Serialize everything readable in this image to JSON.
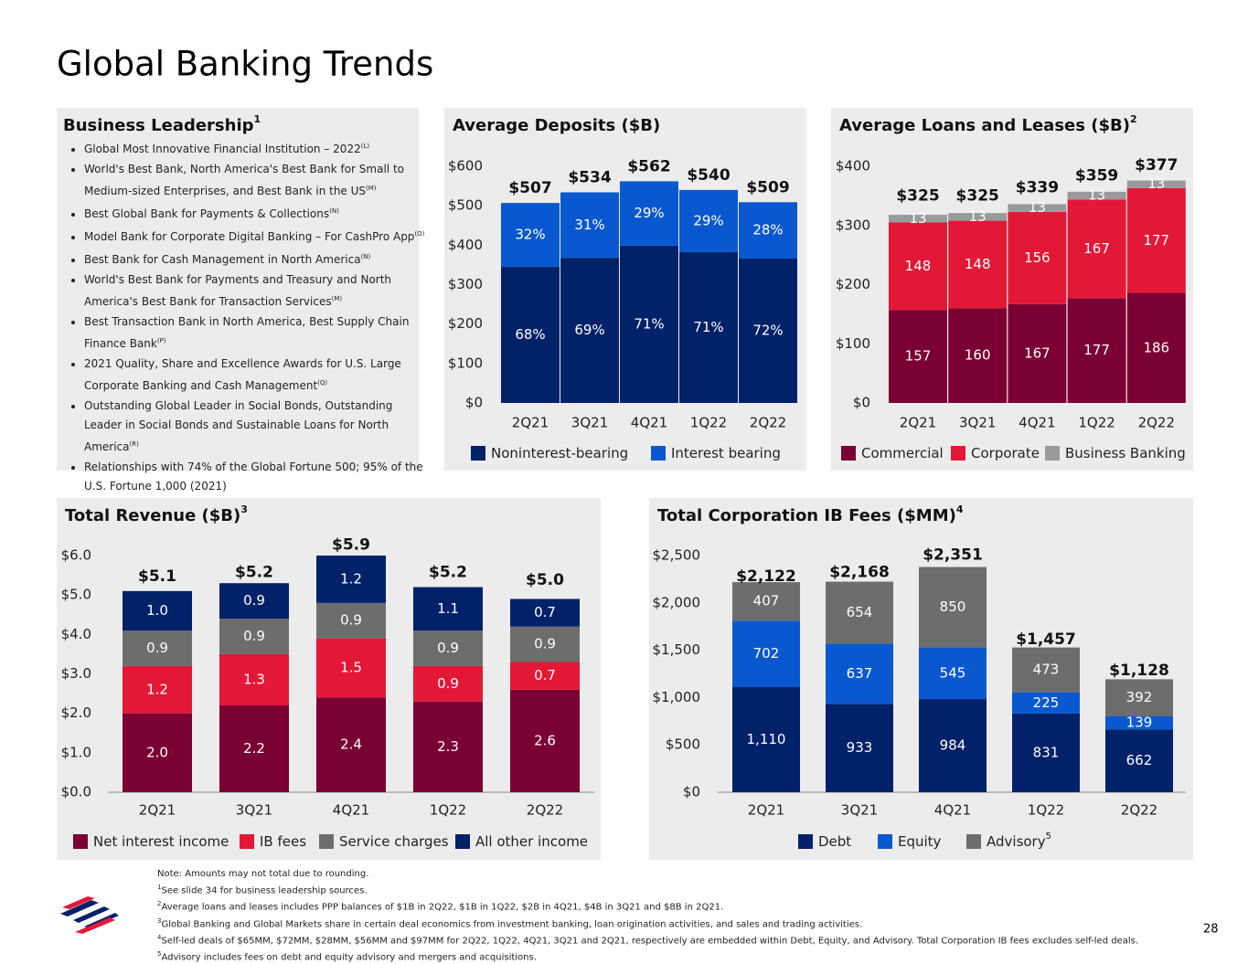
{
  "title": "Global Banking Trends",
  "leadership": {
    "title": "Business Leadership",
    "title_sup": "1",
    "items": [
      {
        "text": "Global Most Innovative Financial Institution – 2022",
        "sup": "(L)"
      },
      {
        "text": "World's Best Bank, North America's Best Bank for Small to Medium-sized Enterprises, and Best Bank in the US",
        "sup": "(M)"
      },
      {
        "text": "Best Global Bank for Payments & Collections",
        "sup": "(N)"
      },
      {
        "text": "Model Bank for Corporate Digital Banking – For CashPro App",
        "sup": "(O)"
      },
      {
        "text": "Best Bank for Cash Management in North America",
        "sup": "(N)"
      },
      {
        "text": "World's Best Bank for Payments and Treasury and North America's Best Bank for Transaction Services",
        "sup": "(M)"
      },
      {
        "text": "Best Transaction Bank in North America, Best Supply Chain Finance Bank",
        "sup": "(P)"
      },
      {
        "text": "2021 Quality, Share and Excellence Awards for U.S. Large Corporate Banking and Cash Management",
        "sup": "(Q)"
      },
      {
        "text": "Outstanding Global Leader in Social Bonds, Outstanding Leader in Social Bonds and Sustainable Loans for North America",
        "sup": "(R)"
      },
      {
        "text": "Relationships with 74% of the Global Fortune 500; 95% of the U.S. Fortune 1,000 (2021)"
      }
    ]
  },
  "chart_data": [
    {
      "type": "bar",
      "title": "Average Deposits ($B)",
      "categories": [
        "2Q21",
        "3Q21",
        "4Q21",
        "1Q22",
        "2Q22"
      ],
      "series": [
        {
          "name": "Noninterest-bearing",
          "color": "#012169",
          "values": [
            345,
            368,
            399,
            383,
            366
          ],
          "share_labels": [
            "68%",
            "69%",
            "71%",
            "71%",
            "72%"
          ]
        },
        {
          "name": "Interest bearing",
          "color": "#0a58d0",
          "values": [
            162,
            166,
            163,
            157,
            143
          ],
          "share_labels": [
            "32%",
            "31%",
            "29%",
            "29%",
            "28%"
          ]
        }
      ],
      "totals": [
        507,
        534,
        562,
        540,
        509
      ],
      "total_labels": [
        "$507",
        "$534",
        "$562",
        "$540",
        "$509"
      ],
      "ylim": [
        0,
        600
      ],
      "yticks": [
        {
          "value": 0,
          "label": "$0"
        },
        {
          "value": 100,
          "label": "$100"
        },
        {
          "value": 200,
          "label": "$200"
        },
        {
          "value": 300,
          "label": "$300"
        },
        {
          "value": 400,
          "label": "$400"
        },
        {
          "value": 500,
          "label": "$500"
        },
        {
          "value": 600,
          "label": "$600"
        }
      ]
    },
    {
      "type": "bar",
      "title": "Average Loans and Leases ($B)",
      "title_sup": "2",
      "categories": [
        "2Q21",
        "3Q21",
        "4Q21",
        "1Q22",
        "2Q22"
      ],
      "series": [
        {
          "name": "Commercial",
          "color": "#7a0033",
          "values": [
            157,
            160,
            167,
            177,
            186
          ]
        },
        {
          "name": "Corporate",
          "color": "#e31837",
          "values": [
            148,
            148,
            156,
            167,
            177
          ]
        },
        {
          "name": "Business Banking",
          "color": "#9a9a9a",
          "values": [
            13,
            13,
            13,
            13,
            13
          ]
        }
      ],
      "totals": [
        325,
        325,
        339,
        359,
        377
      ],
      "total_labels": [
        "$325",
        "$325",
        "$339",
        "$359",
        "$377"
      ],
      "ylim": [
        0,
        400
      ],
      "yticks": [
        {
          "value": 0,
          "label": "$0"
        },
        {
          "value": 100,
          "label": "$100"
        },
        {
          "value": 200,
          "label": "$200"
        },
        {
          "value": 300,
          "label": "$300"
        },
        {
          "value": 400,
          "label": "$400"
        }
      ]
    },
    {
      "type": "bar",
      "title": "Total Revenue ($B)",
      "title_sup": "3",
      "categories": [
        "2Q21",
        "3Q21",
        "4Q21",
        "1Q22",
        "2Q22"
      ],
      "series": [
        {
          "name": "Net interest income",
          "color": "#7a0033",
          "values": [
            2.0,
            2.2,
            2.4,
            2.3,
            2.6
          ],
          "value_labels": [
            "2.0",
            "2.2",
            "2.4",
            "2.3",
            "2.6"
          ]
        },
        {
          "name": "IB fees",
          "color": "#e31837",
          "values": [
            1.2,
            1.3,
            1.5,
            0.9,
            0.7
          ],
          "value_labels": [
            "1.2",
            "1.3",
            "1.5",
            "0.9",
            "0.7"
          ]
        },
        {
          "name": "Service charges",
          "color": "#6d6d6d",
          "values": [
            0.9,
            0.9,
            0.9,
            0.9,
            0.9
          ],
          "value_labels": [
            "0.9",
            "0.9",
            "0.9",
            "0.9",
            "0.9"
          ]
        },
        {
          "name": "All other income",
          "color": "#012169",
          "values": [
            1.0,
            0.9,
            1.2,
            1.1,
            0.7
          ],
          "value_labels": [
            "1.0",
            "0.9",
            "1.2",
            "1.1",
            "0.7"
          ]
        }
      ],
      "totals": [
        5.1,
        5.2,
        5.9,
        5.2,
        5.0
      ],
      "total_labels": [
        "$5.1",
        "$5.2",
        "$5.9",
        "$5.2",
        "$5.0"
      ],
      "ylim": [
        0,
        6
      ],
      "yticks": [
        {
          "value": 0,
          "label": "$0.0"
        },
        {
          "value": 1,
          "label": "$1.0"
        },
        {
          "value": 2,
          "label": "$2.0"
        },
        {
          "value": 3,
          "label": "$3.0"
        },
        {
          "value": 4,
          "label": "$4.0"
        },
        {
          "value": 5,
          "label": "$5.0"
        },
        {
          "value": 6,
          "label": "$6.0"
        }
      ]
    },
    {
      "type": "bar",
      "title": "Total Corporation IB Fees ($MM)",
      "title_sup": "4",
      "categories": [
        "2Q21",
        "3Q21",
        "4Q21",
        "1Q22",
        "2Q22"
      ],
      "series": [
        {
          "name": "Debt",
          "color": "#012169",
          "values": [
            1110,
            933,
            984,
            831,
            662
          ],
          "value_labels": [
            "1,110",
            "933",
            "984",
            "831",
            "662"
          ]
        },
        {
          "name": "Equity",
          "color": "#0a58d0",
          "values": [
            702,
            637,
            545,
            225,
            139
          ]
        },
        {
          "name": "Advisory",
          "name_sup": "5",
          "color": "#6d6d6d",
          "values": [
            407,
            654,
            850,
            473,
            392
          ]
        }
      ],
      "totals": [
        2122,
        2168,
        2351,
        1457,
        1128
      ],
      "total_labels": [
        "$2,122",
        "$2,168",
        "$2,351",
        "$1,457",
        "$1,128"
      ],
      "ylim": [
        0,
        2500
      ],
      "yticks": [
        {
          "value": 0,
          "label": "$0"
        },
        {
          "value": 500,
          "label": "$500"
        },
        {
          "value": 1000,
          "label": "$1,000"
        },
        {
          "value": 1500,
          "label": "$1,500"
        },
        {
          "value": 2000,
          "label": "$2,000"
        },
        {
          "value": 2500,
          "label": "$2,500"
        }
      ]
    }
  ],
  "footnotes": [
    {
      "text": "Note: Amounts may not total due to rounding."
    },
    {
      "sup": "1",
      "text": "See slide 34 for business leadership sources."
    },
    {
      "sup": "2",
      "text": "Average loans and leases includes PPP balances of $1B in 2Q22, $1B in 1Q22, $2B in 4Q21, $4B in 3Q21 and $8B in 2Q21."
    },
    {
      "sup": "3",
      "text": "Global Banking and Global Markets share in certain deal economics from investment banking, loan origination activities, and sales and trading activities."
    },
    {
      "sup": "4",
      "text": "Self-led deals of $65MM, $72MM, $28MM, $56MM and $97MM for 2Q22, 1Q22, 4Q21, 3Q21 and 2Q21, respectively are embedded within Debt, Equity, and Advisory. Total Corporation IB fees excludes self-led deals."
    },
    {
      "sup": "5",
      "text": "Advisory includes fees on debt and equity advisory and mergers and acquisitions."
    }
  ],
  "page_number": "28"
}
